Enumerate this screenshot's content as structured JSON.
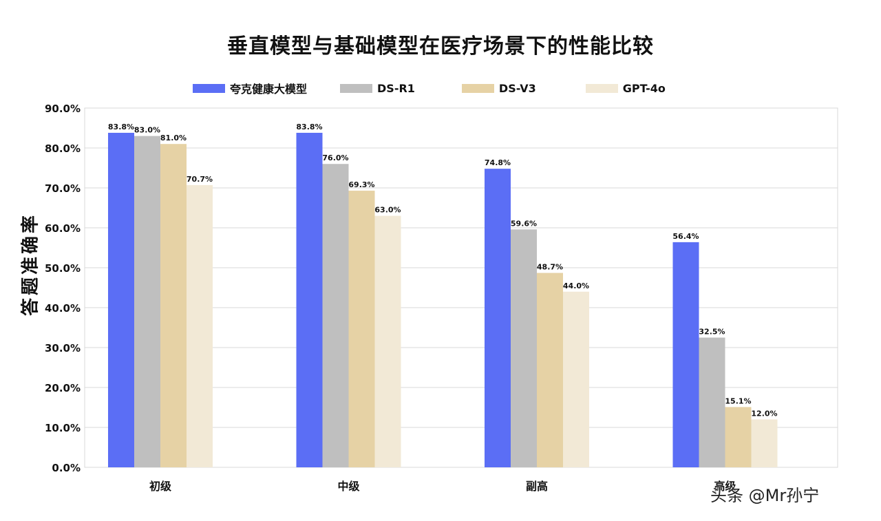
{
  "chart_data": {
    "type": "bar",
    "title": "垂直模型与基础模型在医疗场景下的性能比较",
    "ylabel": "答题准确率",
    "xlabel": "",
    "categories": [
      "初级",
      "中级",
      "副高",
      "高级"
    ],
    "ylim": [
      0,
      90
    ],
    "yticks": [
      "0.0%",
      "10.0%",
      "20.0%",
      "30.0%",
      "40.0%",
      "50.0%",
      "60.0%",
      "70.0%",
      "80.0%",
      "90.0%"
    ],
    "grid": true,
    "legend_position": "top",
    "series": [
      {
        "name": "夸克健康大模型",
        "color": "#5b6ef5",
        "values": [
          83.8,
          83.8,
          74.8,
          56.4
        ],
        "labels": [
          "83.8%",
          "83.8%",
          "74.8%",
          "56.4%"
        ]
      },
      {
        "name": "DS-R1",
        "color": "#bfbfbf",
        "values": [
          83.0,
          76.0,
          59.6,
          32.5
        ],
        "labels": [
          "83.0%",
          "76.0%",
          "59.6%",
          "32.5%"
        ]
      },
      {
        "name": "DS-V3",
        "color": "#e6d2a5",
        "values": [
          81.0,
          69.3,
          48.7,
          15.1
        ],
        "labels": [
          "81.0%",
          "69.3%",
          "48.7%",
          "15.1%"
        ]
      },
      {
        "name": "GPT-4o",
        "color": "#f2e9d6",
        "values": [
          70.7,
          63.0,
          44.0,
          12.0
        ],
        "labels": [
          "70.7%",
          "63.0%",
          "44.0%",
          "12.0%"
        ]
      }
    ]
  },
  "watermark": "头条 @Mr孙宁"
}
